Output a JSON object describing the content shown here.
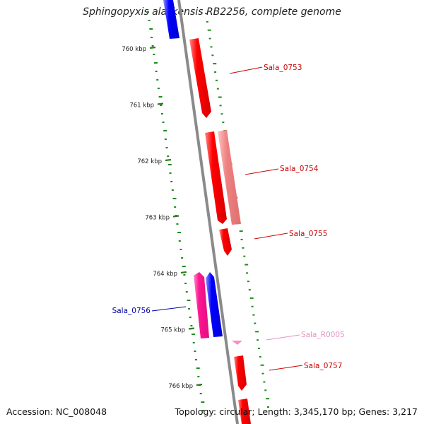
{
  "header": {
    "title": "Sphingopyxis alaskensis RB2256, complete genome"
  },
  "footer": {
    "accession": "Accession: NC_008048",
    "summary": "Topology: circular; Length: 3,345,170 bp; Genes: 3,217"
  },
  "colors": {
    "backbone": "#8a8a8a",
    "tick": "#2e7d1e",
    "gc_dot": "#1e8c1e",
    "cds_forward": "#ff0000",
    "cds_forward_light": "#f08080",
    "cds_reverse": "#0000ff",
    "cds_pink": "#ff1493",
    "rna": "#ff88cc",
    "label_red": "#cc0000",
    "label_blue": "#0000aa",
    "label_pink": "#e890c0"
  },
  "ticks": [
    {
      "label": "760 kbp"
    },
    {
      "label": "761 kbp"
    },
    {
      "label": "762 kbp"
    },
    {
      "label": "763 kbp"
    },
    {
      "label": "764 kbp"
    },
    {
      "label": "765 kbp"
    },
    {
      "label": "766 kbp"
    }
  ],
  "features": [
    {
      "label": "Sala_0753",
      "strand": "forward",
      "color": "red"
    },
    {
      "label": "Sala_0754",
      "strand": "forward",
      "color": "light-red"
    },
    {
      "label": "Sala_0755",
      "strand": "forward",
      "color": "red"
    },
    {
      "label": "Sala_0756",
      "strand": "reverse",
      "color": "blue"
    },
    {
      "label": "Sala_R0005",
      "strand": "forward",
      "color": "pink"
    },
    {
      "label": "Sala_0757",
      "strand": "forward",
      "color": "red"
    }
  ]
}
